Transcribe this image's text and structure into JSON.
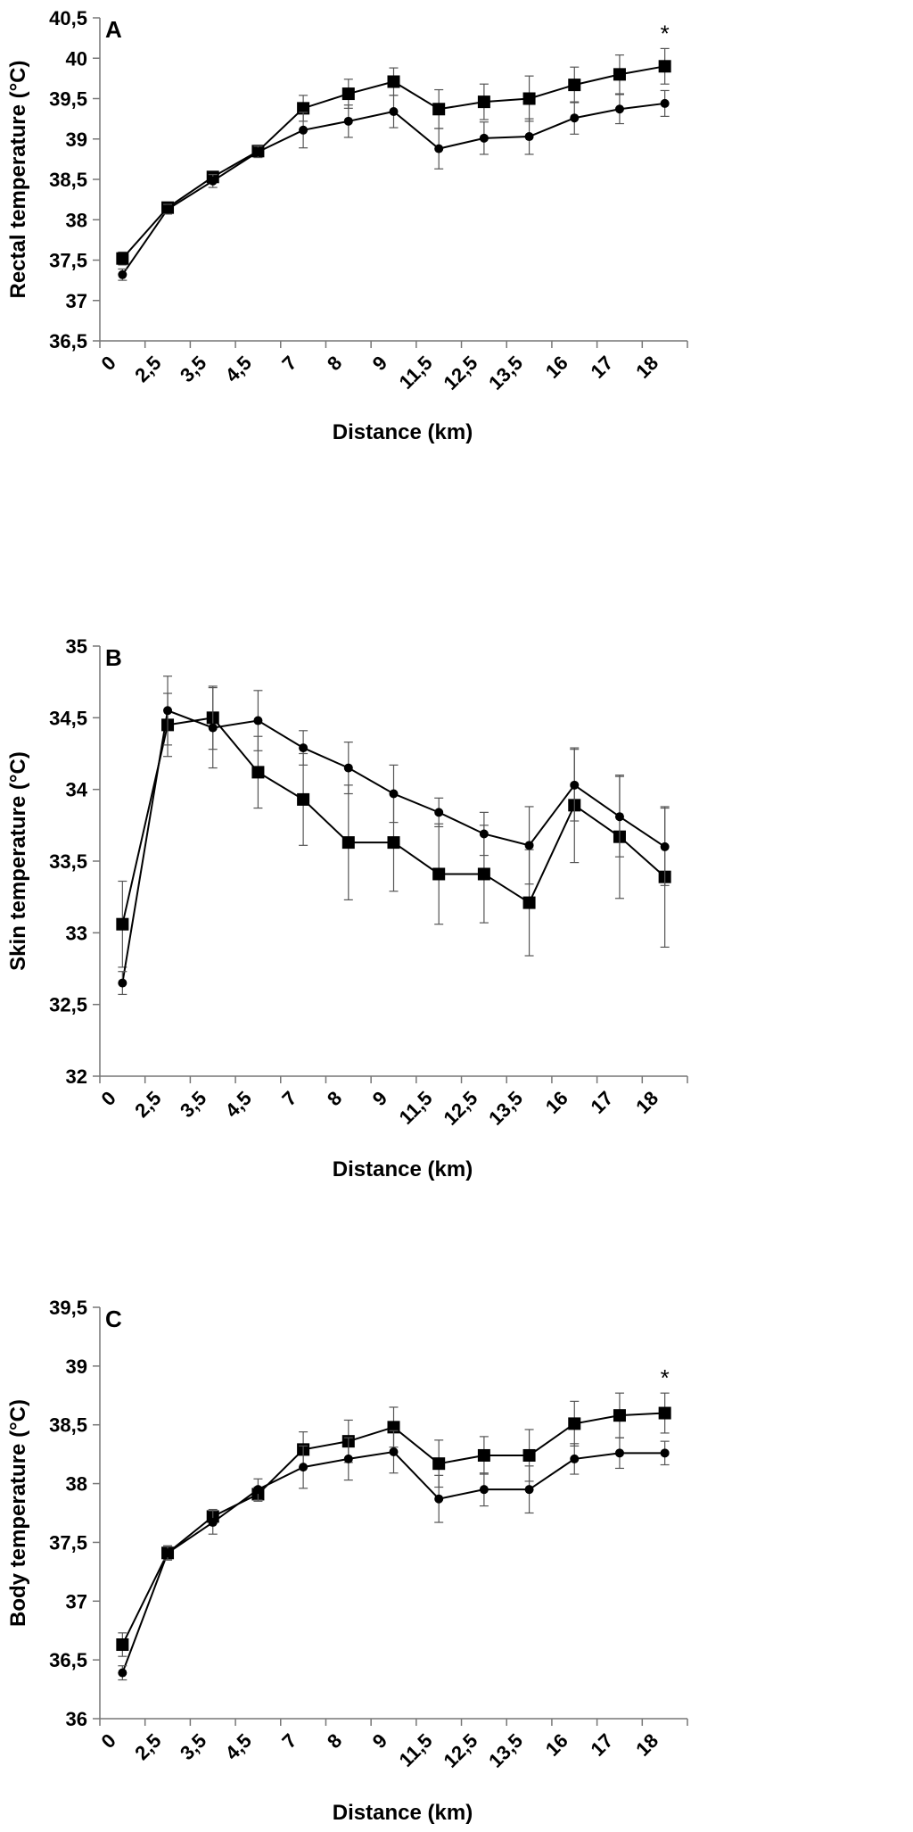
{
  "chart_data": [
    {
      "type": "line",
      "panel_label": "A",
      "xlabel": "Distance (km)",
      "ylabel": "Rectal temperature (°C)",
      "categories": [
        "0",
        "2,5",
        "3,5",
        "4,5",
        "7",
        "8",
        "9",
        "11,5",
        "12,5",
        "13,5",
        "16",
        "17",
        "18"
      ],
      "ylim": [
        36.5,
        40.5
      ],
      "yticks": [
        "36,5",
        "37",
        "37,5",
        "38",
        "38,5",
        "39",
        "39,5",
        "40",
        "40,5"
      ],
      "series": [
        {
          "name": "square-series",
          "marker": "square",
          "values": [
            37.52,
            38.15,
            38.53,
            38.85,
            39.38,
            39.56,
            39.71,
            39.37,
            39.46,
            39.5,
            39.67,
            39.8,
            39.9
          ],
          "errors": [
            0.08,
            0.06,
            0.05,
            0.07,
            0.16,
            0.18,
            0.17,
            0.24,
            0.22,
            0.28,
            0.22,
            0.24,
            0.22
          ]
        },
        {
          "name": "circle-series",
          "marker": "circle",
          "values": [
            37.32,
            38.13,
            38.48,
            38.84,
            39.11,
            39.22,
            39.34,
            38.88,
            39.01,
            39.03,
            39.26,
            39.37,
            39.44
          ],
          "errors": [
            0.07,
            0.06,
            0.08,
            0.07,
            0.22,
            0.2,
            0.2,
            0.25,
            0.2,
            0.22,
            0.2,
            0.18,
            0.16
          ]
        }
      ],
      "annotations": [
        {
          "text": "*",
          "category_index": 12
        }
      ]
    },
    {
      "type": "line",
      "panel_label": "B",
      "xlabel": "Distance (km)",
      "ylabel": "Skin temperature (°C)",
      "categories": [
        "0",
        "2,5",
        "3,5",
        "4,5",
        "7",
        "8",
        "9",
        "11,5",
        "12,5",
        "13,5",
        "16",
        "17",
        "18"
      ],
      "ylim": [
        32,
        35
      ],
      "yticks": [
        "32",
        "32,5",
        "33",
        "33,5",
        "34",
        "34,5",
        "35"
      ],
      "series": [
        {
          "name": "square-series",
          "marker": "square",
          "values": [
            33.06,
            34.45,
            34.5,
            34.12,
            33.93,
            33.63,
            33.63,
            33.41,
            33.41,
            33.21,
            33.89,
            33.67,
            33.39
          ],
          "errors": [
            0.3,
            0.22,
            0.22,
            0.25,
            0.32,
            0.4,
            0.34,
            0.35,
            0.34,
            0.37,
            0.4,
            0.43,
            0.49
          ]
        },
        {
          "name": "circle-series",
          "marker": "circle",
          "values": [
            32.65,
            34.55,
            34.43,
            34.48,
            34.29,
            34.15,
            33.97,
            33.84,
            33.69,
            33.61,
            34.03,
            33.81,
            33.6
          ],
          "errors": [
            0.08,
            0.24,
            0.28,
            0.21,
            0.12,
            0.18,
            0.2,
            0.1,
            0.15,
            0.27,
            0.25,
            0.28,
            0.27
          ]
        }
      ],
      "annotations": []
    },
    {
      "type": "line",
      "panel_label": "C",
      "xlabel": "Distance (km)",
      "ylabel": "Body temperature (°C)",
      "categories": [
        "0",
        "2,5",
        "3,5",
        "4,5",
        "7",
        "8",
        "9",
        "11,5",
        "12,5",
        "13,5",
        "16",
        "17",
        "18"
      ],
      "ylim": [
        36,
        39.5
      ],
      "yticks": [
        "36",
        "36,5",
        "37",
        "37,5",
        "38",
        "38,5",
        "39",
        "39,5"
      ],
      "series": [
        {
          "name": "square-series",
          "marker": "square",
          "values": [
            36.63,
            37.41,
            37.72,
            37.91,
            38.29,
            38.36,
            38.48,
            38.17,
            38.24,
            38.24,
            38.51,
            38.58,
            38.6
          ],
          "errors": [
            0.1,
            0.06,
            0.06,
            0.06,
            0.15,
            0.18,
            0.17,
            0.2,
            0.16,
            0.22,
            0.19,
            0.19,
            0.17
          ]
        },
        {
          "name": "circle-series",
          "marker": "circle",
          "values": [
            36.39,
            37.41,
            37.67,
            37.95,
            38.14,
            38.21,
            38.27,
            37.87,
            37.95,
            37.95,
            38.21,
            38.26,
            38.26
          ],
          "errors": [
            0.06,
            0.06,
            0.1,
            0.09,
            0.18,
            0.18,
            0.18,
            0.2,
            0.14,
            0.2,
            0.13,
            0.13,
            0.1
          ]
        }
      ],
      "annotations": [
        {
          "text": "*",
          "category_index": 12
        }
      ]
    }
  ]
}
